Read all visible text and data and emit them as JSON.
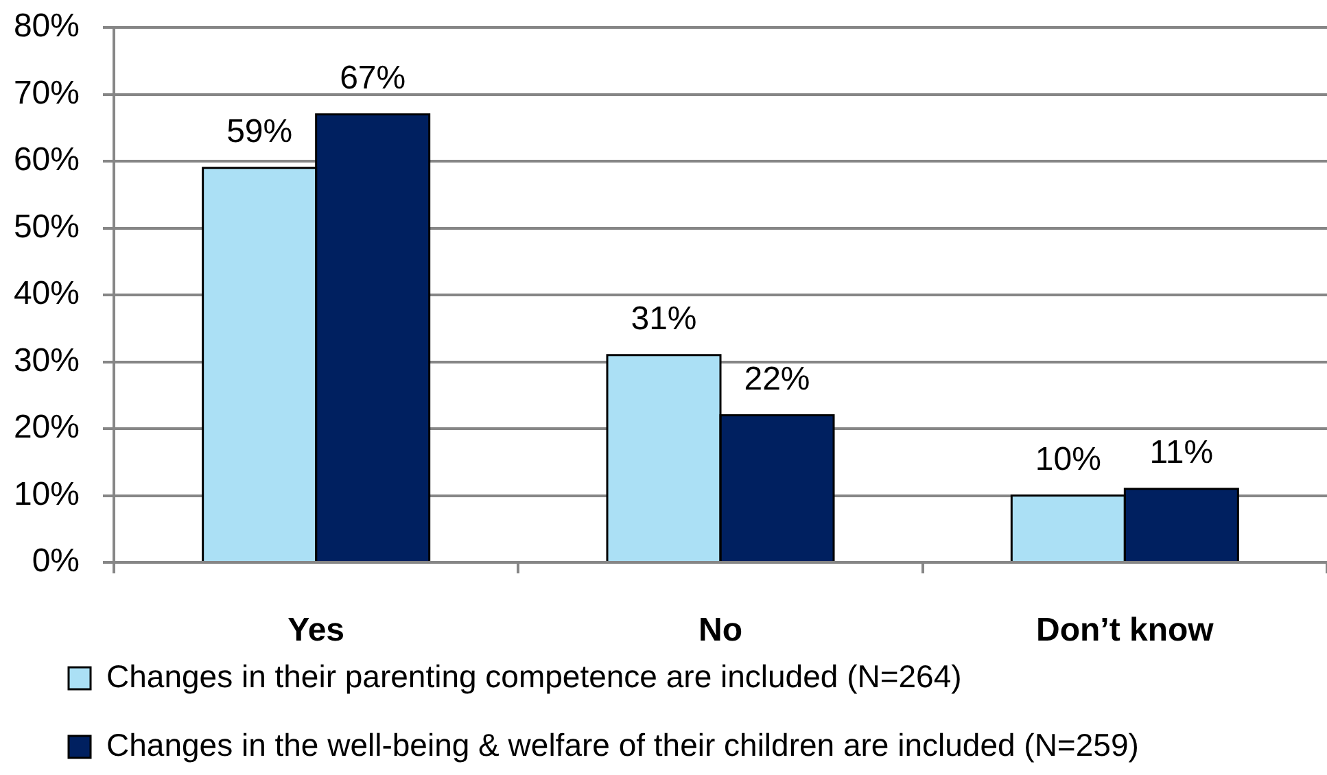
{
  "chart_data": {
    "type": "bar",
    "categories": [
      "Yes",
      "No",
      "Don’t know"
    ],
    "series": [
      {
        "name": "Changes in their parenting competence are included (N=264)",
        "color": "#abe0f5",
        "values": [
          59,
          31,
          10
        ],
        "value_labels": [
          "59%",
          "31%",
          "10%"
        ]
      },
      {
        "name": "Changes in the well-being & welfare of their children are included (N=259)",
        "color": "#002060",
        "values": [
          67,
          22,
          11
        ],
        "value_labels": [
          "67%",
          "22%",
          "11%"
        ]
      }
    ],
    "ylim": [
      0,
      80
    ],
    "yticks": [
      {
        "value": 0,
        "label": "0%"
      },
      {
        "value": 10,
        "label": "10%"
      },
      {
        "value": 20,
        "label": "20%"
      },
      {
        "value": 30,
        "label": "30%"
      },
      {
        "value": 40,
        "label": "40%"
      },
      {
        "value": 50,
        "label": "50%"
      },
      {
        "value": 60,
        "label": "60%"
      },
      {
        "value": 70,
        "label": "70%"
      },
      {
        "value": 80,
        "label": "80%"
      }
    ],
    "grid": "y",
    "legend": "bottom left"
  }
}
